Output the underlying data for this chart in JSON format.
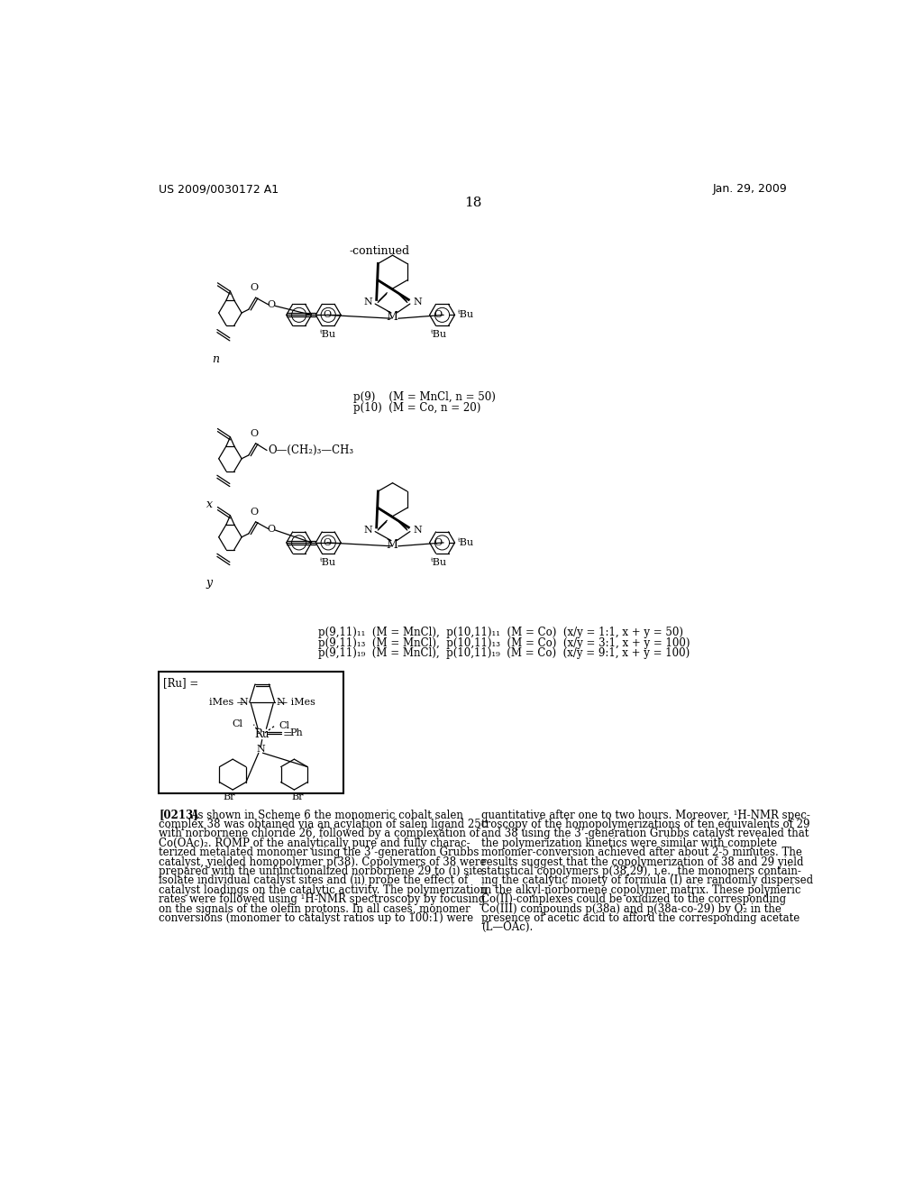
{
  "page_header_left": "US 2009/0030172 A1",
  "page_header_right": "Jan. 29, 2009",
  "page_number": "18",
  "bg_color": "#ffffff",
  "text_color": "#000000",
  "continued_label": "-continued",
  "label_p9": "p(9)    (M = MnCl, n = 50)",
  "label_p10": "p(10)  (M = Co, n = 20)",
  "label_p9_11_11": "p(9,11)₁₁  (M = MnCl),  p(10,11)₁₁  (M = Co) (x/y = 1:1, x + y = 50)",
  "label_p9_11_13": "p(9,11)₁₃  (M = MnCl),  p(10,11)₁₃  (M = Co) (x/y = 3:1, x + y = 100)",
  "label_p9_11_19": "p(9,11)₁₉  (M = MnCl),  p(10,11)₁₉  (M = Co) (x/y = 9:1, x + y = 100)",
  "paragraph_label": "[0213]",
  "left_col_lines": [
    "As shown in Scheme 6 the monomeric cobalt salen",
    "complex 38 was obtained via an acylation of salen ligand 25c",
    "with norbornene chloride 26, followed by a complexation of",
    "Co(OAc)₂. ROMP of the analytically pure and fully charac-",
    "terized metalated monomer using the 3’-generation Grubbs",
    "catalyst, yielded homopolymer p(38). Copolymers of 38 were",
    "prepared with the unfunctionalized norbornene 29 to (i) site-",
    "isolate individual catalyst sites and (ii) probe the effect of",
    "catalyst loadings on the catalytic activity. The polymerization",
    "rates were followed using ¹H-NMR spectroscopy by focusing",
    "on the signals of the olefin protons. In all cases, monomer",
    "conversions (monomer to catalyst ratios up to 100:1) were"
  ],
  "right_col_lines": [
    "quantitative after one to two hours. Moreover, ¹H-NMR spec-",
    "troscopy of the homopolymerizations of ten equivalents of 29",
    "and 38 using the 3’-generation Grubbs catalyst revealed that",
    "the polymerization kinetics were similar with complete",
    "monomer-conversion achieved after about 2-5 minutes. The",
    "results suggest that the copolymerization of 38 and 29 yield",
    "statistical copolymers p(38,29), i.e., the monomers contain-",
    "ing the catalytic moiety of formula (I) are randomly dispersed",
    "in the alkyl-norbornene copolymer matrix. These polymeric",
    "Co(II)-complexes could be oxidized to the corresponding",
    "Co(III) compounds p(38a) and p(38a-co-29) by O₂ in the",
    "presence of acetic acid to afford the corresponding acetate",
    "(L—OAc)."
  ]
}
